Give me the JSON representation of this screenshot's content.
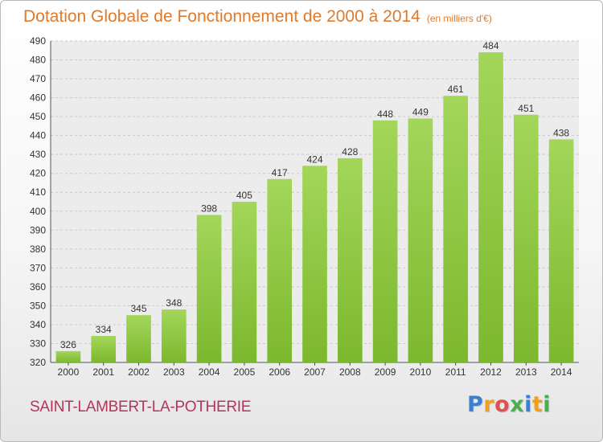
{
  "chart_data": {
    "type": "bar",
    "title": "Dotation Globale de Fonctionnement de 2000 à 2014",
    "subtitle": "(en milliers d'€)",
    "xlabel": "",
    "ylabel": "",
    "categories": [
      "2000",
      "2001",
      "2002",
      "2003",
      "2004",
      "2005",
      "2006",
      "2007",
      "2008",
      "2009",
      "2010",
      "2011",
      "2012",
      "2013",
      "2014"
    ],
    "values": [
      326,
      334,
      345,
      348,
      398,
      405,
      417,
      424,
      428,
      448,
      449,
      461,
      484,
      451,
      438
    ],
    "ylim": [
      320,
      490
    ],
    "yticks": [
      320,
      330,
      340,
      350,
      360,
      370,
      380,
      390,
      400,
      410,
      420,
      430,
      440,
      450,
      460,
      470,
      480,
      490
    ],
    "grid": true,
    "bar_color": "#7cb82e",
    "bar_color_light": "#a3d65a",
    "title_color": "#e07a2a"
  },
  "footer": {
    "city": "SAINT-LAMBERT-LA-POTHERIE"
  },
  "logo": {
    "text": "Proxiti",
    "letters": [
      "P",
      "r",
      "o",
      "x",
      "i",
      "t",
      "i"
    ],
    "colors": [
      "#3a7fd0",
      "#f0a020",
      "#e05050",
      "#48b048",
      "#3a7fd0",
      "#f0a020",
      "#48b048"
    ]
  }
}
